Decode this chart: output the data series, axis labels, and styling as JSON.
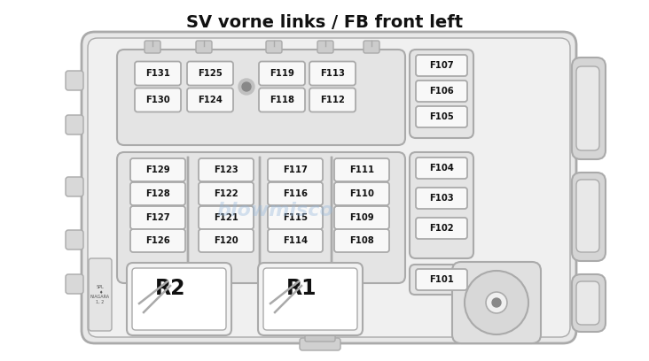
{
  "title": "SV vorne links / FB front left",
  "title_fontsize": 14,
  "title_fontweight": "bold",
  "bg_color": "#ffffff",
  "line_color": "#aaaaaa",
  "text_color": "#111111",
  "fuse_text_color": "#111111",
  "watermark_color": "#99bbdd",
  "fuse_rows_top": [
    [
      "F131",
      "F125",
      "F119",
      "F113"
    ],
    [
      "F130",
      "F124",
      "F118",
      "F112"
    ]
  ],
  "fuse_rows_top_right": [
    "F107",
    "F106",
    "F105"
  ],
  "fuse_rows_mid": [
    [
      "F129",
      "F123",
      "F117",
      "F111"
    ],
    [
      "F128",
      "F122",
      "F116",
      "F110"
    ],
    [
      "F127",
      "F121",
      "F115",
      "F109"
    ],
    [
      "F126",
      "F120",
      "F114",
      "F108"
    ]
  ],
  "fuse_rows_mid_right": [
    "F104",
    "F103",
    "F102"
  ],
  "fuse_f101": "F101",
  "relay_labels": [
    "R2",
    "R1"
  ]
}
